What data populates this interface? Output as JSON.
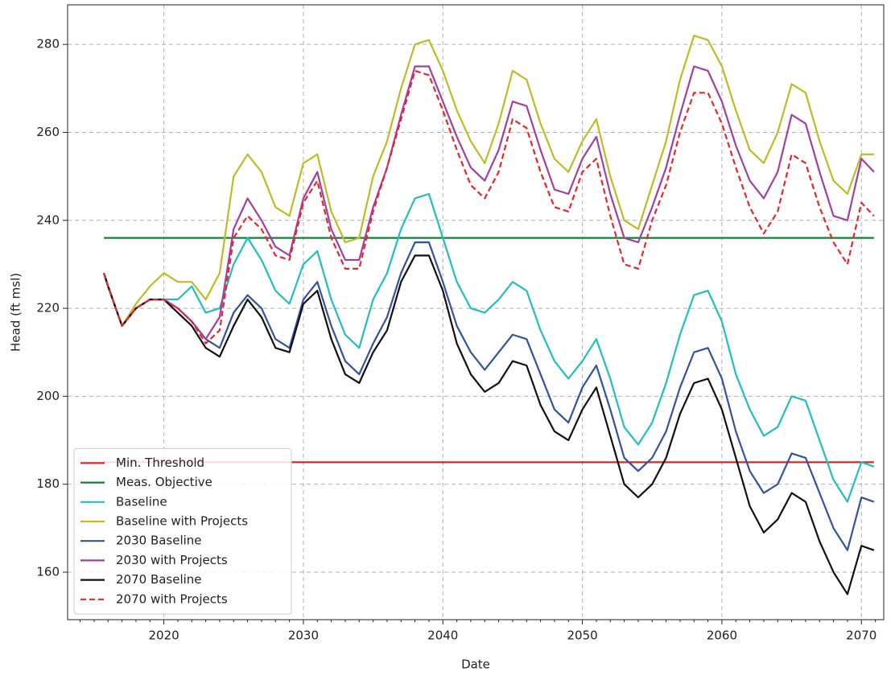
{
  "chart_data": {
    "type": "line",
    "xlabel": "Date",
    "ylabel": "Head (ft msl)",
    "xlim": [
      2013.1,
      2071.6
    ],
    "ylim": [
      149.2,
      289
    ],
    "xticks": [
      2020,
      2030,
      2040,
      2050,
      2060,
      2070
    ],
    "x_minor_ticks": [
      2014,
      2015,
      2016,
      2017,
      2018,
      2019,
      2021,
      2022,
      2023,
      2024,
      2025,
      2026,
      2027,
      2028,
      2029,
      2031,
      2032,
      2033,
      2034,
      2035,
      2036,
      2037,
      2038,
      2039,
      2041,
      2042,
      2043,
      2044,
      2045,
      2046,
      2047,
      2048,
      2049,
      2051,
      2052,
      2053,
      2054,
      2055,
      2056,
      2057,
      2058,
      2059,
      2061,
      2062,
      2063,
      2064,
      2065,
      2066,
      2067,
      2068,
      2069,
      2071
    ],
    "yticks": [
      160,
      180,
      200,
      220,
      240,
      260,
      280
    ],
    "grid": true,
    "legend": "lower left",
    "x": [
      2015.7,
      2016,
      2017,
      2018,
      2019,
      2020,
      2021,
      2022,
      2023,
      2024,
      2025,
      2026,
      2027,
      2028,
      2029,
      2030,
      2031,
      2032,
      2033,
      2034,
      2035,
      2036,
      2037,
      2038,
      2039,
      2040,
      2041,
      2042,
      2043,
      2044,
      2045,
      2046,
      2047,
      2048,
      2049,
      2050,
      2051,
      2052,
      2053,
      2054,
      2055,
      2056,
      2057,
      2058,
      2059,
      2060,
      2061,
      2062,
      2063,
      2064,
      2065,
      2066,
      2067,
      2068,
      2069,
      2070,
      2070.9
    ],
    "series": [
      {
        "name": "Min. Threshold",
        "color": "#d62728",
        "x": [
          2015.7,
          2070.9
        ],
        "values": [
          185,
          185
        ]
      },
      {
        "name": "Meas. Objective",
        "color": "#127f3a",
        "x": [
          2015.7,
          2070.9
        ],
        "values": [
          236,
          236
        ]
      },
      {
        "name": "Baseline",
        "color": "#1fbfbf",
        "values": [
          228,
          225,
          216,
          220,
          222,
          222,
          222,
          225,
          219,
          220,
          230,
          236,
          231,
          224,
          221,
          230,
          233,
          222,
          214,
          211,
          222,
          228,
          238,
          245,
          246,
          236,
          226,
          220,
          219,
          222,
          226,
          224,
          215,
          208,
          204,
          208,
          213,
          204,
          193,
          189,
          194,
          203,
          214,
          223,
          224,
          217,
          205,
          197,
          191,
          193,
          200,
          199,
          190,
          181,
          176,
          185,
          184
        ]
      },
      {
        "name": "Baseline with Projects",
        "color": "#bcbd22",
        "values": [
          228,
          225,
          216,
          221,
          225,
          228,
          226,
          226,
          222,
          228,
          250,
          255,
          251,
          243,
          241,
          253,
          255,
          242,
          235,
          236,
          250,
          258,
          270,
          280,
          281,
          274,
          265,
          258,
          253,
          262,
          274,
          272,
          262,
          254,
          251,
          258,
          263,
          250,
          240,
          238,
          248,
          258,
          272,
          282,
          281,
          275,
          265,
          256,
          253,
          260,
          271,
          269,
          258,
          249,
          246,
          255,
          255
        ]
      },
      {
        "name": "2030 Baseline",
        "color": "#3452a0",
        "values": [
          228,
          225,
          216,
          220,
          222,
          222,
          220,
          217,
          213,
          211,
          219,
          223,
          220,
          213,
          211,
          222,
          226,
          216,
          208,
          205,
          212,
          218,
          228,
          235,
          235,
          226,
          216,
          210,
          206,
          210,
          214,
          213,
          205,
          197,
          194,
          202,
          207,
          197,
          186,
          183,
          186,
          192,
          202,
          210,
          211,
          204,
          192,
          183,
          178,
          180,
          187,
          186,
          178,
          170,
          165,
          177,
          176
        ]
      },
      {
        "name": "2030 with Projects",
        "color": "#a040a0",
        "values": [
          228,
          225,
          216,
          220,
          222,
          222,
          220,
          217,
          213,
          218,
          238,
          245,
          240,
          234,
          232,
          245,
          251,
          238,
          231,
          231,
          243,
          252,
          264,
          275,
          275,
          267,
          259,
          252,
          249,
          256,
          267,
          266,
          256,
          247,
          246,
          254,
          259,
          246,
          236,
          235,
          243,
          252,
          264,
          275,
          274,
          267,
          257,
          249,
          245,
          251,
          264,
          262,
          251,
          241,
          240,
          254,
          251
        ]
      },
      {
        "name": "2070 Baseline",
        "color": "#111111",
        "values": [
          228,
          225,
          216,
          220,
          222,
          222,
          219,
          216,
          211,
          209,
          216,
          222,
          218,
          211,
          210,
          221,
          224,
          213,
          205,
          203,
          210,
          215,
          226,
          232,
          232,
          224,
          212,
          205,
          201,
          203,
          208,
          207,
          198,
          192,
          190,
          197,
          202,
          191,
          180,
          177,
          180,
          186,
          196,
          203,
          204,
          197,
          186,
          175,
          169,
          172,
          178,
          176,
          167,
          160,
          155,
          166,
          165
        ]
      },
      {
        "name": "2070 with Projects",
        "color": "#e8262b",
        "dash": true,
        "values": [
          228,
          225,
          216,
          220,
          222,
          222,
          220,
          217,
          212,
          215,
          236,
          241,
          238,
          232,
          231,
          244,
          249,
          236,
          229,
          229,
          242,
          252,
          263,
          274,
          273,
          265,
          256,
          248,
          245,
          251,
          263,
          261,
          251,
          243,
          242,
          251,
          254,
          241,
          230,
          229,
          240,
          248,
          260,
          269,
          269,
          262,
          252,
          243,
          237,
          242,
          255,
          253,
          243,
          235,
          230,
          244,
          241
        ]
      }
    ]
  }
}
